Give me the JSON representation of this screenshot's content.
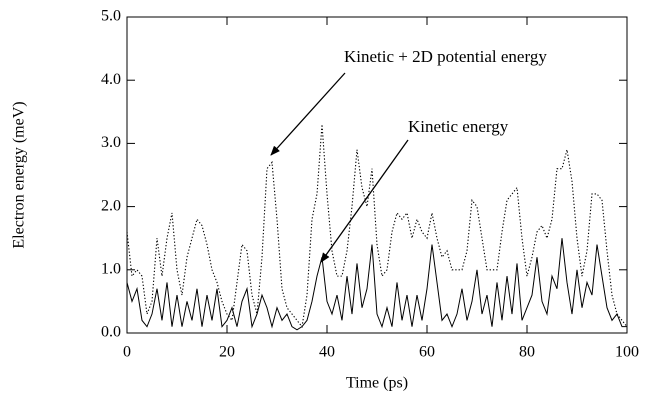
{
  "chart_data": {
    "type": "line",
    "xlabel": "Time (ps)",
    "ylabel": "Electron energy (meV)",
    "x": [
      0,
      1,
      2,
      3,
      4,
      5,
      6,
      7,
      8,
      9,
      10,
      11,
      12,
      13,
      14,
      15,
      16,
      17,
      18,
      19,
      20,
      21,
      22,
      23,
      24,
      25,
      26,
      27,
      28,
      29,
      30,
      31,
      32,
      33,
      34,
      35,
      36,
      37,
      38,
      39,
      40,
      41,
      42,
      43,
      44,
      45,
      46,
      47,
      48,
      49,
      50,
      51,
      52,
      53,
      54,
      55,
      56,
      57,
      58,
      59,
      60,
      61,
      62,
      63,
      64,
      65,
      66,
      67,
      68,
      69,
      70,
      71,
      72,
      73,
      74,
      75,
      76,
      77,
      78,
      79,
      80,
      81,
      82,
      83,
      84,
      85,
      86,
      87,
      88,
      89,
      90,
      91,
      92,
      93,
      94,
      95,
      96,
      97,
      98,
      99,
      100
    ],
    "series": [
      {
        "name": "Kinetic energy",
        "color": "#000000",
        "style": "solid",
        "values": [
          0.8,
          0.5,
          0.7,
          0.2,
          0.1,
          0.3,
          0.7,
          0.2,
          0.8,
          0.1,
          0.6,
          0.1,
          0.5,
          0.2,
          0.7,
          0.1,
          0.6,
          0.2,
          0.7,
          0.1,
          0.2,
          0.4,
          0.1,
          0.5,
          0.7,
          0.1,
          0.3,
          0.6,
          0.4,
          0.1,
          0.4,
          0.2,
          0.3,
          0.1,
          0.05,
          0.1,
          0.2,
          0.5,
          0.9,
          1.2,
          0.5,
          0.3,
          0.6,
          0.2,
          0.9,
          0.3,
          1.1,
          0.4,
          0.7,
          1.4,
          0.3,
          0.1,
          0.4,
          0.1,
          0.8,
          0.2,
          0.6,
          0.1,
          0.6,
          0.2,
          0.7,
          1.4,
          0.8,
          0.2,
          0.3,
          0.1,
          0.3,
          0.7,
          0.2,
          0.5,
          1.0,
          0.3,
          0.6,
          0.1,
          0.8,
          0.2,
          0.9,
          0.3,
          1.1,
          0.2,
          0.4,
          0.6,
          1.2,
          0.5,
          0.3,
          0.9,
          0.7,
          1.5,
          0.8,
          0.3,
          1.0,
          0.4,
          0.8,
          0.6,
          1.4,
          0.9,
          0.4,
          0.2,
          0.3,
          0.1,
          0.1
        ]
      },
      {
        "name": "Kinetic + 2D potential energy",
        "color": "#000000",
        "style": "dotted",
        "values": [
          1.6,
          0.9,
          1.0,
          0.9,
          0.3,
          0.5,
          1.5,
          0.9,
          1.5,
          1.9,
          1.0,
          0.6,
          1.2,
          1.5,
          1.8,
          1.7,
          1.4,
          1.0,
          0.8,
          0.5,
          0.3,
          0.2,
          0.8,
          1.4,
          1.3,
          0.6,
          0.3,
          1.2,
          2.6,
          2.7,
          1.8,
          0.7,
          0.4,
          0.3,
          0.2,
          0.1,
          0.6,
          1.8,
          2.2,
          3.3,
          2.2,
          1.3,
          0.9,
          0.9,
          1.3,
          2.0,
          2.9,
          2.3,
          2.0,
          2.6,
          1.4,
          0.9,
          1.0,
          1.6,
          1.9,
          1.8,
          1.9,
          1.5,
          1.8,
          1.6,
          1.5,
          1.9,
          1.5,
          1.2,
          1.3,
          1.0,
          1.0,
          1.0,
          1.3,
          2.1,
          2.0,
          1.5,
          1.0,
          1.0,
          1.0,
          1.6,
          2.1,
          2.2,
          2.3,
          1.5,
          0.9,
          1.2,
          1.6,
          1.7,
          1.5,
          1.8,
          2.6,
          2.6,
          2.9,
          2.4,
          1.5,
          0.9,
          1.3,
          2.2,
          2.2,
          2.1,
          1.3,
          0.6,
          0.3,
          0.2,
          0.1
        ]
      }
    ],
    "xlim": [
      0,
      100
    ],
    "xticks": [
      0,
      20,
      40,
      60,
      80,
      100
    ],
    "ylim": [
      0,
      5
    ],
    "yticks": [
      {
        "value": 0,
        "label": "0.0"
      },
      {
        "value": 1,
        "label": "1.0"
      },
      {
        "value": 2,
        "label": "2.0"
      },
      {
        "value": 3,
        "label": "3.0"
      },
      {
        "value": 4,
        "label": "4.0"
      },
      {
        "value": 5,
        "label": "5.0"
      }
    ],
    "grid": false
  }
}
